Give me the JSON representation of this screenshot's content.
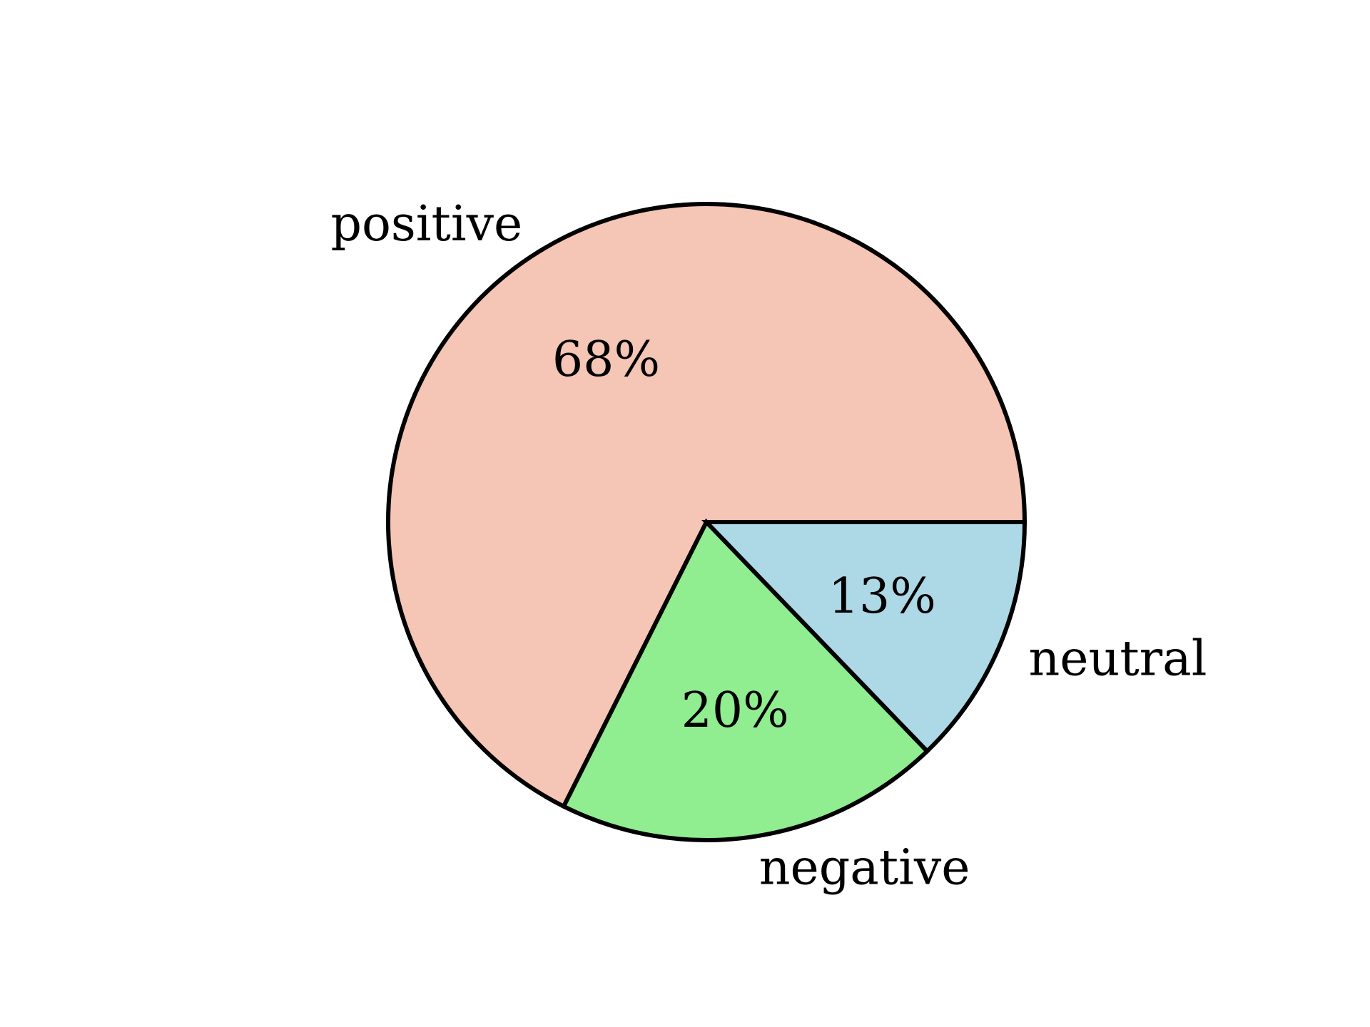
{
  "chart_data": {
    "type": "pie",
    "title": "",
    "slices": [
      {
        "label": "positive",
        "value": 67.6,
        "display": "68%",
        "color": "#F5C5B5"
      },
      {
        "label": "negative",
        "value": 19.6,
        "display": "20%",
        "color": "#90EE90"
      },
      {
        "label": "neutral",
        "value": 12.8,
        "display": "13%",
        "color": "#ADD8E6"
      }
    ],
    "start_angle_deg": 0,
    "direction": "counterclockwise",
    "edge_color": "#000000",
    "legend": "none"
  }
}
